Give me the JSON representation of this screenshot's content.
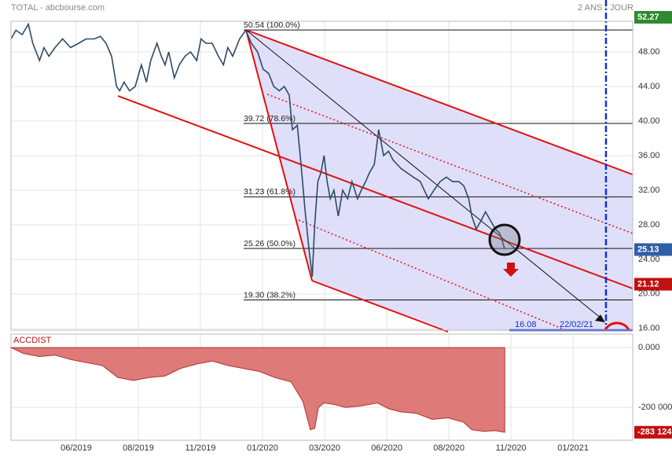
{
  "header": {
    "title": "TOTAL - abcbourse.com",
    "period": "2 ANS - JOUR"
  },
  "chart_data": [
    {
      "type": "line",
      "x": [
        -1.05,
        -0.97,
        -0.87,
        -0.77,
        -0.7,
        -0.59,
        -0.52,
        -0.44,
        -0.34,
        -0.22,
        -0.09,
        0.04,
        0.16,
        0.29,
        0.39,
        0.48,
        0.57,
        0.65,
        0.7,
        0.77,
        0.86,
        0.95,
        1.05,
        1.13,
        1.2,
        1.3,
        1.37,
        1.43,
        1.49,
        1.58,
        1.66,
        1.75,
        1.84,
        1.94,
        2.01,
        2.09,
        2.19,
        2.29,
        2.37,
        2.44,
        2.52,
        2.63,
        2.73,
        2.82,
        2.92,
        3.01,
        3.1,
        3.18,
        3.27,
        3.35,
        3.43,
        3.48,
        3.56,
        3.62,
        3.68,
        3.75,
        3.8,
        3.84,
        3.89,
        3.94,
        3.99,
        4.04,
        4.09,
        4.15,
        4.22,
        4.29,
        4.37,
        4.44,
        4.53,
        4.59,
        4.66,
        4.72,
        4.8,
        4.87,
        4.95,
        5.03,
        5.1,
        5.23,
        5.33,
        5.43,
        5.54,
        5.67,
        5.76,
        5.86,
        5.96,
        6.06,
        6.16,
        6.24,
        6.32,
        6.37,
        6.44,
        6.52,
        6.59,
        6.67,
        6.75,
        6.82,
        6.9
      ],
      "series": [
        {
          "color": "#2e4a66",
          "values": [
            49.5,
            50.5,
            50,
            51.2,
            49,
            47,
            48.5,
            47.5,
            48.5,
            49.5,
            48.5,
            49,
            49.5,
            49.5,
            49.8,
            49,
            47.5,
            44,
            43.5,
            44.5,
            43.5,
            44,
            46.5,
            44.5,
            47,
            49,
            47.5,
            46.5,
            48,
            45,
            46.5,
            47.5,
            48,
            47,
            49.5,
            49,
            49,
            47.5,
            46.5,
            48.5,
            47.5,
            49.5,
            50.5,
            49,
            48,
            46,
            45.5,
            44,
            43.5,
            44,
            43,
            39,
            39.5,
            35,
            30,
            25,
            22,
            28,
            33,
            34,
            36,
            33,
            31,
            32,
            29,
            32,
            31,
            33,
            31,
            32,
            33,
            34,
            35,
            39,
            36,
            36.5,
            35.5,
            34.5,
            34,
            33.5,
            33,
            31,
            32,
            33,
            33.5,
            33,
            33,
            32.5,
            31,
            29,
            27.5,
            28.5,
            29.5,
            28.5,
            27.5,
            27,
            25.2
          ]
        }
      ],
      "xlim": [
        -1.05,
        8.96
      ],
      "ylim": [
        15.8,
        51.55
      ],
      "yticks": [
        {
          "value": 16,
          "label": "16.00"
        },
        {
          "value": 20,
          "label": "20.00"
        },
        {
          "value": 24,
          "label": "24.00"
        },
        {
          "value": 28,
          "label": "28.00"
        },
        {
          "value": 32,
          "label": "32.00"
        },
        {
          "value": 36,
          "label": "36.00"
        },
        {
          "value": 40,
          "label": "40.00"
        },
        {
          "value": 44,
          "label": "44.00"
        },
        {
          "value": 48,
          "label": "48.00"
        }
      ],
      "grid": true,
      "fib_levels": [
        {
          "value": 50.54,
          "label": "50.54  (100.0%)"
        },
        {
          "value": 39.72,
          "label": "39.72  (78.6%)"
        },
        {
          "value": 31.23,
          "label": "31.23  (61.8%)"
        },
        {
          "value": 25.26,
          "label": "25.26  (50.0%)"
        },
        {
          "value": 19.3,
          "label": "19.30  (38.2%)"
        }
      ],
      "price_tags": [
        {
          "value": 52.27,
          "color": "#2e8b2e"
        },
        {
          "value": 25.13,
          "color": "#2f5fa8"
        },
        {
          "value": 21.12,
          "color": "#c01010"
        }
      ],
      "annotations": [
        "16.08",
        "22/02/21"
      ]
    },
    {
      "type": "area",
      "title": "ACCDIST",
      "x": [
        -1.05,
        -0.85,
        -0.59,
        -0.34,
        -0.09,
        0.16,
        0.42,
        0.67,
        0.92,
        1.18,
        1.43,
        1.68,
        1.94,
        2.19,
        2.44,
        2.7,
        2.95,
        3.2,
        3.46,
        3.65,
        3.77,
        3.84,
        3.9,
        3.99,
        4.15,
        4.34,
        4.59,
        4.85,
        5.04,
        5.23,
        5.48,
        5.73,
        5.99,
        6.24,
        6.37,
        6.56,
        6.75,
        6.9
      ],
      "series": [
        {
          "color": "#de7a78",
          "values": [
            0,
            -20000,
            -30000,
            -25000,
            -40000,
            -50000,
            -60000,
            -100000,
            -110000,
            -100000,
            -95000,
            -70000,
            -55000,
            -45000,
            -60000,
            -70000,
            -80000,
            -100000,
            -115000,
            -180000,
            -275000,
            -270000,
            -200000,
            -185000,
            -190000,
            -200000,
            -195000,
            -185000,
            -205000,
            -215000,
            -220000,
            -240000,
            -235000,
            -250000,
            -275000,
            -280000,
            -278000,
            -283124
          ]
        }
      ],
      "xlim": [
        -1.05,
        8.96
      ],
      "ylim": [
        -310000,
        45000
      ],
      "yticks": [
        {
          "value": 0,
          "label": "0.000"
        },
        {
          "value": -200000,
          "label": "-200 000"
        }
      ],
      "xticks": [
        {
          "value": 0,
          "label": "06/2019"
        },
        {
          "value": 1,
          "label": "08/2019"
        },
        {
          "value": 2,
          "label": "11/2019"
        },
        {
          "value": 3,
          "label": "01/2020"
        },
        {
          "value": 4,
          "label": "03/2020"
        },
        {
          "value": 5,
          "label": "06/2020"
        },
        {
          "value": 6,
          "label": "08/2020"
        },
        {
          "value": 7,
          "label": "11/2020"
        },
        {
          "value": 8,
          "label": "01/2021"
        }
      ],
      "grid": true,
      "last_tag": {
        "value": -283124,
        "label": "-283 124",
        "color": "#c01010"
      }
    }
  ]
}
